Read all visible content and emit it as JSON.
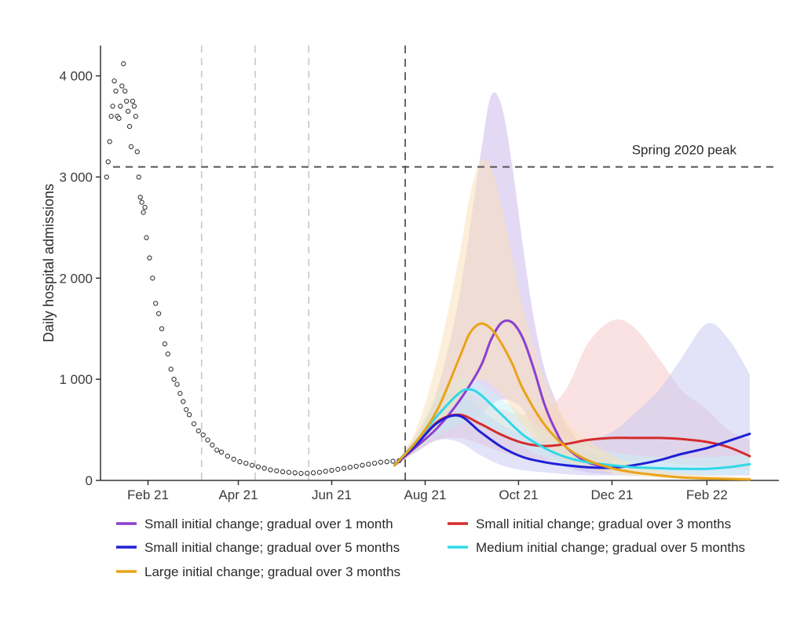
{
  "chart_data": {
    "type": "line",
    "title": "",
    "xlabel": "",
    "ylabel": "Daily hospital admissions",
    "ylim": [
      0,
      4300
    ],
    "x_range": [
      "2021-01-01",
      "2022-03-20"
    ],
    "x_ticks": [
      {
        "date": "2021-02-01",
        "label": "Feb 21"
      },
      {
        "date": "2021-04-01",
        "label": "Apr 21"
      },
      {
        "date": "2021-06-01",
        "label": "Jun 21"
      },
      {
        "date": "2021-08-01",
        "label": "Aug 21"
      },
      {
        "date": "2021-10-01",
        "label": "Oct 21"
      },
      {
        "date": "2021-12-01",
        "label": "Dec 21"
      },
      {
        "date": "2022-02-01",
        "label": "Feb 22"
      }
    ],
    "y_ticks": [
      {
        "value": 0,
        "label": "0"
      },
      {
        "value": 1000,
        "label": "1 000"
      },
      {
        "value": 2000,
        "label": "2 000"
      },
      {
        "value": 3000,
        "label": "3 000"
      },
      {
        "value": 4000,
        "label": "4 000"
      }
    ],
    "grid": false,
    "legend_position": "bottom",
    "reference_line": {
      "value": 3100,
      "label": "Spring 2020 peak"
    },
    "event_lines": [
      {
        "date": "2021-03-08",
        "style": "light-dashed"
      },
      {
        "date": "2021-04-12",
        "style": "light-dashed"
      },
      {
        "date": "2021-05-17",
        "style": "light-dashed"
      },
      {
        "date": "2021-07-19",
        "style": "dark-dashed"
      }
    ],
    "observed": {
      "dates": [
        "2021-01-05",
        "2021-01-06",
        "2021-01-07",
        "2021-01-08",
        "2021-01-09",
        "2021-01-10",
        "2021-01-11",
        "2021-01-12",
        "2021-01-13",
        "2021-01-14",
        "2021-01-15",
        "2021-01-16",
        "2021-01-17",
        "2021-01-18",
        "2021-01-19",
        "2021-01-20",
        "2021-01-21",
        "2021-01-22",
        "2021-01-23",
        "2021-01-24",
        "2021-01-25",
        "2021-01-26",
        "2021-01-27",
        "2021-01-28",
        "2021-01-29",
        "2021-01-30",
        "2021-01-31",
        "2021-02-02",
        "2021-02-04",
        "2021-02-06",
        "2021-02-08",
        "2021-02-10",
        "2021-02-12",
        "2021-02-14",
        "2021-02-16",
        "2021-02-18",
        "2021-02-20",
        "2021-02-22",
        "2021-02-24",
        "2021-02-26",
        "2021-02-28",
        "2021-03-03",
        "2021-03-06",
        "2021-03-09",
        "2021-03-12",
        "2021-03-15",
        "2021-03-18",
        "2021-03-21",
        "2021-03-25",
        "2021-03-29",
        "2021-04-02",
        "2021-04-06",
        "2021-04-10",
        "2021-04-14",
        "2021-04-18",
        "2021-04-22",
        "2021-04-26",
        "2021-04-30",
        "2021-05-04",
        "2021-05-08",
        "2021-05-12",
        "2021-05-16",
        "2021-05-20",
        "2021-05-24",
        "2021-05-28",
        "2021-06-01",
        "2021-06-05",
        "2021-06-09",
        "2021-06-13",
        "2021-06-17",
        "2021-06-21",
        "2021-06-25",
        "2021-06-29",
        "2021-07-03",
        "2021-07-07",
        "2021-07-11",
        "2021-07-15"
      ],
      "values": [
        3000,
        3150,
        3350,
        3600,
        3700,
        3950,
        3850,
        3600,
        3580,
        3700,
        3900,
        4120,
        3850,
        3750,
        3650,
        3500,
        3300,
        3750,
        3700,
        3600,
        3250,
        3000,
        2800,
        2750,
        2650,
        2700,
        2400,
        2200,
        2000,
        1750,
        1650,
        1500,
        1350,
        1250,
        1100,
        1000,
        950,
        860,
        780,
        700,
        650,
        560,
        490,
        450,
        400,
        350,
        300,
        280,
        240,
        210,
        185,
        170,
        150,
        135,
        120,
        105,
        95,
        85,
        80,
        75,
        70,
        72,
        75,
        80,
        90,
        100,
        110,
        120,
        130,
        140,
        150,
        160,
        170,
        180,
        185,
        190,
        195
      ]
    },
    "series": [
      {
        "name": "Small initial change; gradual over 1 month",
        "color": "#8b3fd1",
        "band_color": "#c9b3ea",
        "dates": [
          "2021-07-12",
          "2021-07-26",
          "2021-08-09",
          "2021-08-23",
          "2021-09-06",
          "2021-09-13",
          "2021-09-20",
          "2021-09-27",
          "2021-10-04",
          "2021-10-11",
          "2021-10-18",
          "2021-10-25",
          "2021-11-01",
          "2021-11-15",
          "2021-12-01"
        ],
        "values": [
          150,
          330,
          520,
          780,
          1120,
          1390,
          1560,
          1560,
          1400,
          1100,
          750,
          500,
          330,
          180,
          120
        ],
        "upper": [
          160,
          400,
          900,
          1800,
          3200,
          3800,
          3700,
          3100,
          2300,
          1600,
          1100,
          800,
          550,
          300,
          200
        ],
        "lower": [
          140,
          300,
          450,
          550,
          650,
          750,
          800,
          780,
          700,
          500,
          350,
          220,
          140,
          80,
          60
        ]
      },
      {
        "name": "Small initial change; gradual over 3 months",
        "color": "#d42c2c",
        "band_color": "#f6c5c5",
        "dates": [
          "2021-07-12",
          "2021-07-26",
          "2021-08-09",
          "2021-08-23",
          "2021-09-06",
          "2021-09-20",
          "2021-10-04",
          "2021-10-18",
          "2021-11-01",
          "2021-11-15",
          "2021-12-01",
          "2021-12-15",
          "2022-01-01",
          "2022-01-15",
          "2022-02-01",
          "2022-02-15",
          "2022-03-01"
        ],
        "values": [
          150,
          350,
          580,
          650,
          560,
          450,
          370,
          340,
          360,
          400,
          420,
          420,
          420,
          410,
          380,
          330,
          240
        ],
        "upper": [
          160,
          450,
          800,
          900,
          800,
          700,
          650,
          700,
          900,
          1350,
          1580,
          1520,
          1200,
          900,
          700,
          500,
          400
        ],
        "lower": [
          140,
          280,
          400,
          420,
          360,
          280,
          220,
          200,
          200,
          200,
          200,
          190,
          180,
          160,
          140,
          120,
          100
        ]
      },
      {
        "name": "Small initial change; gradual over 5 months",
        "color": "#1f1fd6",
        "band_color": "#c5c5f2",
        "dates": [
          "2021-07-12",
          "2021-07-26",
          "2021-08-09",
          "2021-08-23",
          "2021-09-06",
          "2021-09-20",
          "2021-10-04",
          "2021-10-18",
          "2021-11-01",
          "2021-11-15",
          "2021-12-01",
          "2021-12-15",
          "2022-01-01",
          "2022-01-15",
          "2022-02-01",
          "2022-02-15",
          "2022-03-01"
        ],
        "values": [
          150,
          350,
          570,
          640,
          480,
          330,
          230,
          180,
          150,
          130,
          125,
          150,
          200,
          260,
          320,
          390,
          460
        ],
        "upper": [
          160,
          420,
          800,
          850,
          700,
          550,
          450,
          400,
          380,
          400,
          480,
          650,
          900,
          1200,
          1550,
          1400,
          1050
        ],
        "lower": [
          140,
          280,
          400,
          380,
          250,
          150,
          100,
          80,
          60,
          50,
          50,
          50,
          50,
          50,
          50,
          50,
          50
        ]
      },
      {
        "name": "Medium initial change; gradual over 5 months",
        "color": "#2fd8e8",
        "band_color": "#c8f1f5",
        "dates": [
          "2021-07-12",
          "2021-07-26",
          "2021-08-09",
          "2021-08-23",
          "2021-08-30",
          "2021-09-06",
          "2021-09-20",
          "2021-10-04",
          "2021-10-18",
          "2021-11-01",
          "2021-11-15",
          "2021-12-01",
          "2021-12-15",
          "2022-01-01",
          "2022-01-15",
          "2022-02-01",
          "2022-02-15",
          "2022-03-01"
        ],
        "values": [
          150,
          380,
          640,
          860,
          900,
          850,
          650,
          450,
          320,
          230,
          180,
          150,
          130,
          120,
          115,
          115,
          130,
          160
        ],
        "upper": [
          160,
          450,
          850,
          1000,
          1000,
          950,
          800,
          650,
          500,
          400,
          330,
          280,
          250,
          230,
          230,
          230,
          240,
          260
        ],
        "lower": [
          140,
          300,
          450,
          550,
          580,
          550,
          450,
          330,
          230,
          160,
          120,
          100,
          80,
          70,
          60,
          60,
          60,
          70
        ]
      },
      {
        "name": "Large initial change; gradual over 3 months",
        "color": "#e8a317",
        "band_color": "#f9e0b3",
        "dates": [
          "2021-07-12",
          "2021-07-26",
          "2021-08-09",
          "2021-08-23",
          "2021-08-30",
          "2021-09-06",
          "2021-09-13",
          "2021-09-20",
          "2021-09-27",
          "2021-10-04",
          "2021-10-18",
          "2021-11-01",
          "2021-11-15",
          "2021-12-01",
          "2021-12-15",
          "2022-01-01",
          "2022-01-15",
          "2022-02-01",
          "2022-02-15",
          "2022-03-01"
        ],
        "values": [
          150,
          380,
          700,
          1200,
          1450,
          1550,
          1500,
          1350,
          1150,
          900,
          550,
          330,
          200,
          120,
          80,
          50,
          30,
          20,
          15,
          10
        ],
        "upper": [
          160,
          500,
          1200,
          2200,
          2800,
          3150,
          3100,
          2700,
          2200,
          1700,
          1000,
          600,
          400,
          250,
          160,
          100,
          70,
          50,
          40,
          30
        ],
        "lower": [
          140,
          300,
          500,
          800,
          950,
          1000,
          950,
          850,
          700,
          550,
          330,
          200,
          120,
          70,
          40,
          25,
          15,
          10,
          8,
          5
        ]
      }
    ]
  }
}
